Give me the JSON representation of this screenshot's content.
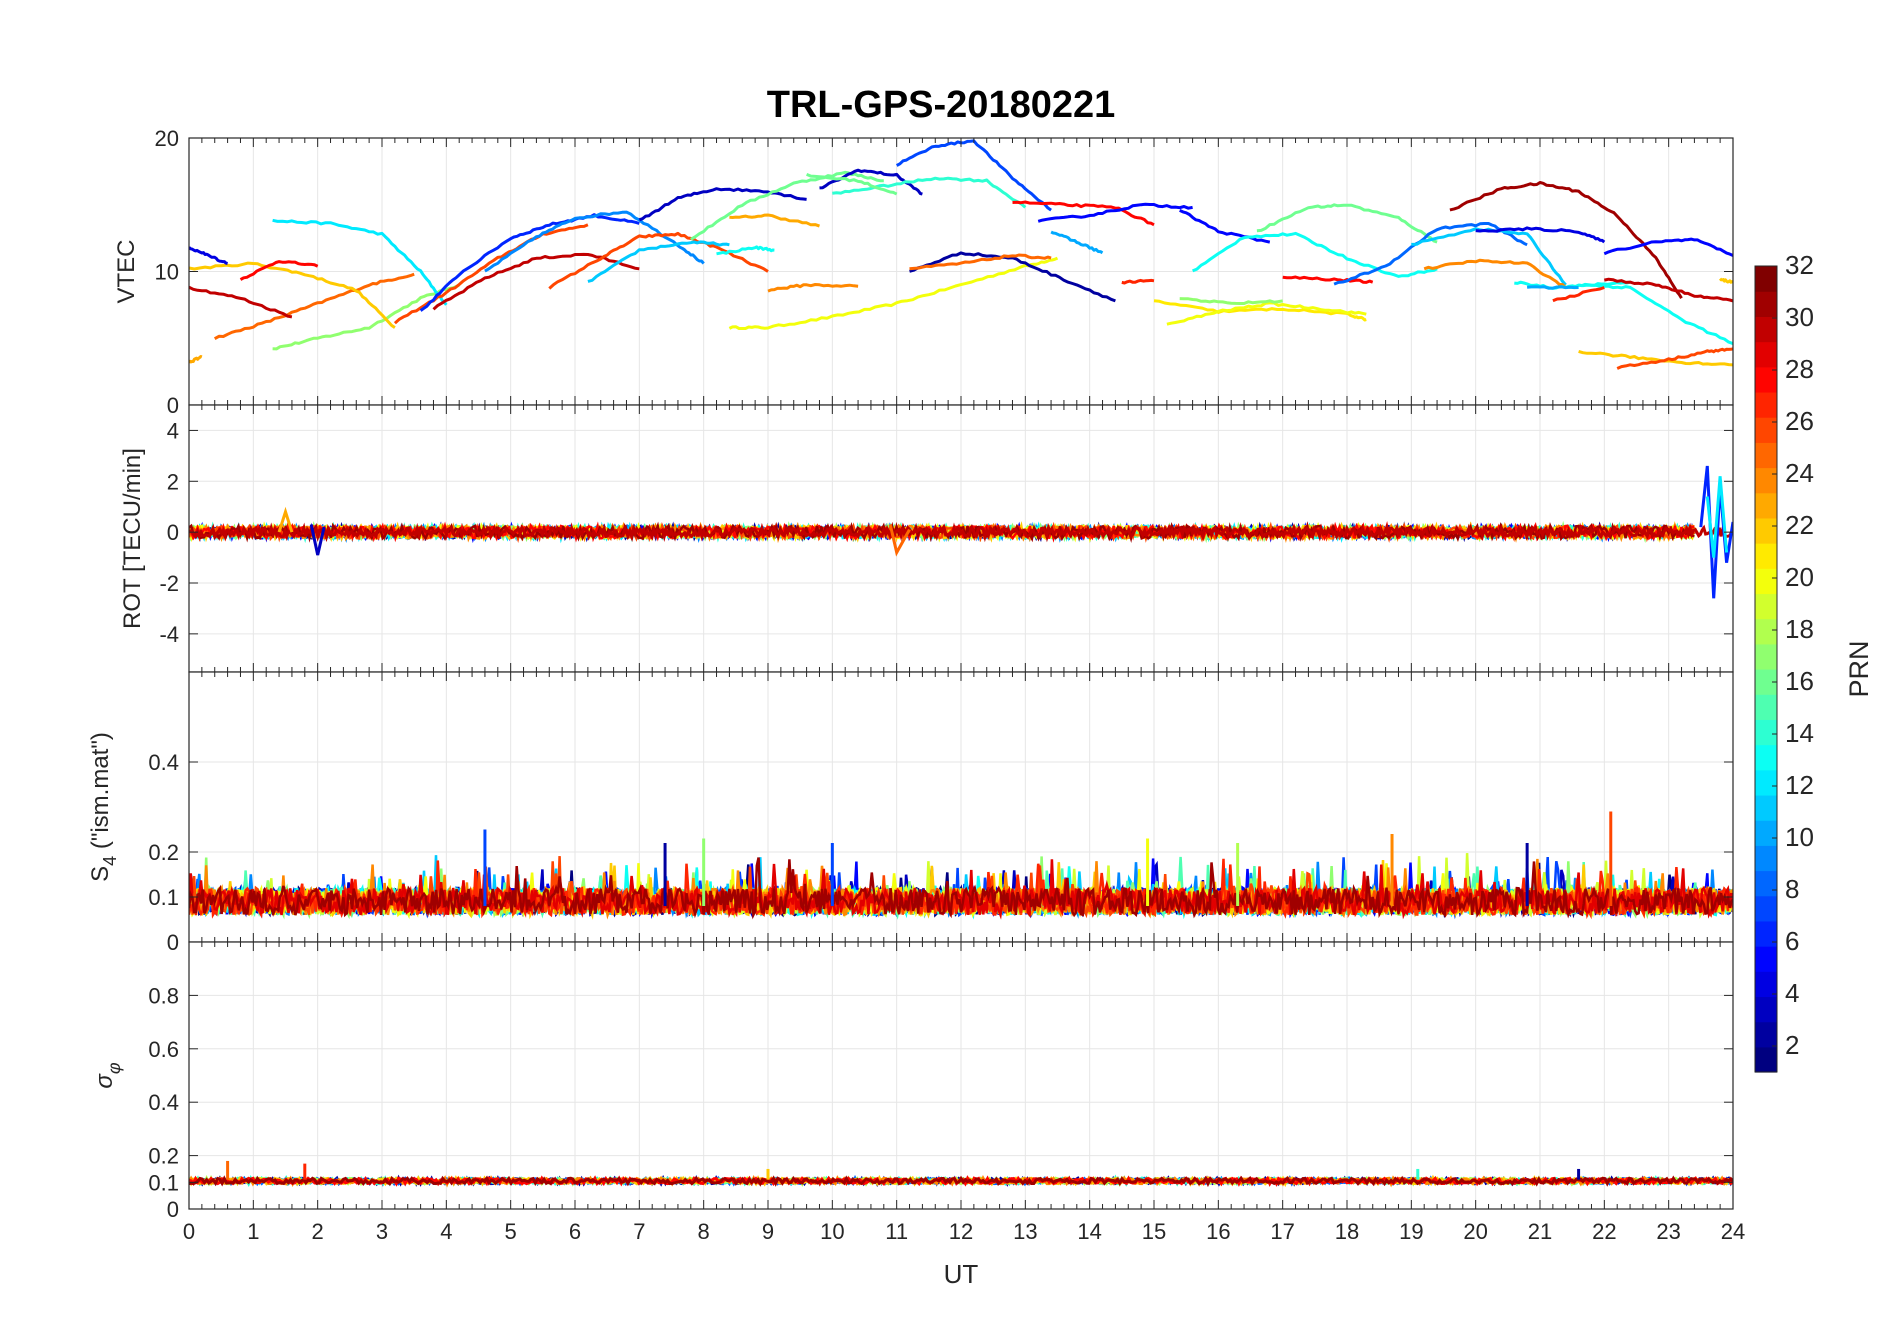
{
  "figure": {
    "title": "TRL-GPS-20180221",
    "xlabel": "UT",
    "colorbar_label": "PRN"
  },
  "colors": {
    "grid": "#e6e6e6",
    "axis": "#262626",
    "colormap": "jet"
  },
  "chart_data": [
    {
      "type": "line",
      "panel": "VTEC",
      "ylabel": "VTEC",
      "xlim": [
        0,
        24
      ],
      "ylim": [
        0,
        20
      ],
      "yticks": [
        0,
        10,
        20
      ],
      "grid": true,
      "series": [
        {
          "prn": 20,
          "x": [
            8.4,
            9.0,
            10.0,
            11.0,
            12.0,
            13.0,
            13.5
          ],
          "y": [
            5.8,
            5.8,
            6.6,
            7.6,
            9.0,
            10.4,
            11.0
          ]
        },
        {
          "prn": 17,
          "x": [
            1.3,
            2.0,
            2.8,
            3.6,
            4.2
          ],
          "y": [
            4.2,
            5.0,
            5.8,
            8.0,
            9.0
          ]
        },
        {
          "prn": 25,
          "x": [
            0.4,
            1.2,
            2.0,
            2.8,
            3.5
          ],
          "y": [
            5.0,
            6.2,
            7.6,
            9.0,
            9.8
          ]
        },
        {
          "prn": 12,
          "x": [
            1.3,
            2.2,
            3.0,
            3.6,
            4.0
          ],
          "y": [
            13.8,
            13.6,
            12.8,
            10.0,
            7.5
          ]
        },
        {
          "prn": 22,
          "x": [
            0.0,
            1.0,
            1.8,
            2.6,
            3.2
          ],
          "y": [
            10.2,
            10.6,
            9.8,
            8.6,
            5.8
          ]
        },
        {
          "prn": 30,
          "x": [
            0.0,
            0.8,
            1.6
          ],
          "y": [
            8.8,
            8.0,
            6.6
          ]
        },
        {
          "prn": 28,
          "x": [
            0.8,
            1.4,
            2.0
          ],
          "y": [
            9.4,
            10.8,
            10.4
          ]
        },
        {
          "prn": 26,
          "x": [
            3.2,
            4.0,
            4.8,
            5.5,
            6.2
          ],
          "y": [
            6.2,
            8.4,
            11.0,
            12.8,
            13.5
          ]
        },
        {
          "prn": 6,
          "x": [
            3.6,
            4.2,
            5.0,
            5.6,
            6.3,
            7.0
          ],
          "y": [
            7.0,
            9.8,
            12.5,
            13.5,
            14.2,
            13.6
          ]
        },
        {
          "prn": 9,
          "x": [
            4.6,
            5.4,
            6.0,
            6.8,
            7.6,
            8.0
          ],
          "y": [
            10.0,
            12.6,
            14.0,
            14.5,
            12.0,
            10.6
          ]
        },
        {
          "prn": 30,
          "x": [
            3.8,
            4.6,
            5.4,
            6.2,
            7.0
          ],
          "y": [
            7.2,
            9.5,
            11.0,
            11.3,
            10.2
          ]
        },
        {
          "prn": 26,
          "x": [
            5.6,
            6.4,
            7.0,
            7.6,
            8.2,
            9.0
          ],
          "y": [
            8.8,
            11.0,
            12.6,
            12.8,
            11.8,
            10.0
          ]
        },
        {
          "prn": 11,
          "x": [
            6.2,
            7.0,
            7.8,
            8.4
          ],
          "y": [
            9.2,
            11.6,
            12.2,
            12.0
          ]
        },
        {
          "prn": 3,
          "x": [
            7.0,
            7.6,
            8.2,
            9.0,
            9.6
          ],
          "y": [
            13.8,
            15.5,
            16.2,
            16.0,
            15.4
          ]
        },
        {
          "prn": 16,
          "x": [
            7.8,
            8.6,
            9.4,
            10.2,
            10.8
          ],
          "y": [
            12.4,
            15.0,
            16.6,
            17.4,
            16.8
          ]
        },
        {
          "prn": 13,
          "x": [
            8.2,
            8.8,
            9.1
          ],
          "y": [
            11.3,
            11.8,
            11.6
          ]
        },
        {
          "prn": 23,
          "x": [
            8.4,
            9.0,
            9.8
          ],
          "y": [
            14.0,
            14.2,
            13.4
          ]
        },
        {
          "prn": 3,
          "x": [
            9.8,
            10.4,
            11.0,
            11.4
          ],
          "y": [
            16.2,
            17.6,
            17.2,
            15.8
          ]
        },
        {
          "prn": 14,
          "x": [
            10.0,
            10.8,
            11.6,
            12.4,
            13.0
          ],
          "y": [
            15.8,
            16.4,
            17.0,
            16.8,
            14.8
          ]
        },
        {
          "prn": 16,
          "x": [
            9.6,
            10.4,
            11.0
          ],
          "y": [
            17.2,
            16.8,
            15.8
          ]
        },
        {
          "prn": 7,
          "x": [
            11.0,
            11.6,
            12.2,
            12.8,
            13.4
          ],
          "y": [
            18.0,
            19.4,
            19.8,
            17.0,
            14.6
          ]
        },
        {
          "prn": 24,
          "x": [
            9.0,
            9.6,
            10.4
          ],
          "y": [
            8.6,
            9.0,
            8.9
          ]
        },
        {
          "prn": 2,
          "x": [
            11.2,
            12.0,
            12.8,
            13.6,
            14.4
          ],
          "y": [
            10.0,
            11.4,
            11.0,
            9.4,
            7.8
          ]
        },
        {
          "prn": 25,
          "x": [
            11.2,
            12.0,
            12.8,
            13.4
          ],
          "y": [
            10.2,
            10.6,
            11.2,
            11.0
          ]
        },
        {
          "prn": 28,
          "x": [
            12.8,
            13.6,
            14.4,
            15.0
          ],
          "y": [
            15.2,
            15.0,
            14.8,
            13.5
          ]
        },
        {
          "prn": 5,
          "x": [
            13.2,
            14.0,
            14.8,
            15.6
          ],
          "y": [
            13.8,
            14.2,
            15.0,
            14.8
          ]
        },
        {
          "prn": 10,
          "x": [
            13.4,
            13.8,
            14.2
          ],
          "y": [
            13.0,
            12.2,
            11.4
          ]
        },
        {
          "prn": 5,
          "x": [
            15.4,
            16.0,
            16.8
          ],
          "y": [
            14.6,
            13.0,
            12.2
          ]
        },
        {
          "prn": 27,
          "x": [
            14.5,
            15.0
          ],
          "y": [
            9.2,
            9.3
          ]
        },
        {
          "prn": 21,
          "x": [
            15.0,
            16.0,
            17.0,
            18.0,
            18.3
          ],
          "y": [
            7.8,
            7.0,
            7.2,
            6.8,
            6.4
          ]
        },
        {
          "prn": 20,
          "x": [
            15.2,
            16.0,
            16.8,
            17.6,
            18.3
          ],
          "y": [
            6.0,
            7.0,
            7.6,
            7.2,
            6.8
          ]
        },
        {
          "prn": 17,
          "x": [
            15.4,
            16.2,
            17.0
          ],
          "y": [
            8.0,
            7.6,
            7.8
          ]
        },
        {
          "prn": 13,
          "x": [
            15.6,
            16.4,
            17.2,
            18.0,
            18.8,
            19.4
          ],
          "y": [
            10.0,
            12.6,
            12.8,
            11.0,
            9.6,
            10.2
          ]
        },
        {
          "prn": 16,
          "x": [
            16.6,
            17.4,
            18.0,
            18.8,
            19.4
          ],
          "y": [
            13.0,
            14.8,
            15.0,
            14.0,
            12.2
          ]
        },
        {
          "prn": 28,
          "x": [
            17.0,
            17.8,
            18.4
          ],
          "y": [
            9.6,
            9.4,
            9.2
          ]
        },
        {
          "prn": 8,
          "x": [
            17.8,
            18.6,
            19.4,
            20.2,
            20.8
          ],
          "y": [
            9.0,
            10.4,
            13.2,
            13.6,
            12.0
          ]
        },
        {
          "prn": 11,
          "x": [
            19.0,
            20.0,
            20.8,
            21.4
          ],
          "y": [
            12.0,
            13.2,
            12.8,
            9.0
          ]
        },
        {
          "prn": 24,
          "x": [
            19.2,
            20.0,
            20.8,
            21.4
          ],
          "y": [
            10.2,
            10.8,
            10.6,
            8.8
          ]
        },
        {
          "prn": 31,
          "x": [
            19.6,
            20.4,
            21.0,
            21.6,
            22.2,
            22.8,
            23.2
          ],
          "y": [
            14.6,
            16.2,
            16.6,
            16.0,
            14.2,
            11.0,
            8.0
          ]
        },
        {
          "prn": 4,
          "x": [
            20.0,
            20.8,
            21.6,
            22.0
          ],
          "y": [
            13.0,
            13.2,
            13.0,
            12.2
          ]
        },
        {
          "prn": 13,
          "x": [
            20.6,
            21.2,
            21.8,
            22.4
          ],
          "y": [
            9.2,
            8.8,
            9.0,
            9.2
          ]
        },
        {
          "prn": 13,
          "x": [
            21.6,
            22.4,
            23.2,
            24.0
          ],
          "y": [
            9.0,
            8.8,
            6.4,
            4.6
          ]
        },
        {
          "prn": 10,
          "x": [
            20.8,
            21.6
          ],
          "y": [
            8.8,
            8.8
          ]
        },
        {
          "prn": 27,
          "x": [
            21.2,
            22.0
          ],
          "y": [
            7.8,
            8.8
          ]
        },
        {
          "prn": 30,
          "x": [
            22.0,
            22.8,
            23.4,
            24.0
          ],
          "y": [
            9.4,
            9.0,
            8.2,
            7.8
          ]
        },
        {
          "prn": 5,
          "x": [
            22.0,
            22.8,
            23.4,
            24.0
          ],
          "y": [
            11.4,
            12.2,
            12.4,
            11.2
          ]
        },
        {
          "prn": 22,
          "x": [
            21.6,
            22.4,
            23.2,
            24.0
          ],
          "y": [
            4.0,
            3.6,
            3.2,
            3.0
          ]
        },
        {
          "prn": 26,
          "x": [
            22.2,
            23.0,
            23.6,
            24.0
          ],
          "y": [
            2.8,
            3.4,
            4.0,
            4.2
          ]
        },
        {
          "prn": 22,
          "x": [
            23.8,
            24.0
          ],
          "y": [
            9.4,
            9.2
          ]
        },
        {
          "prn": 23,
          "x": [
            0.0,
            0.2
          ],
          "y": [
            3.2,
            3.6
          ]
        },
        {
          "prn": 4,
          "x": [
            0.0,
            0.3,
            0.6
          ],
          "y": [
            11.8,
            11.2,
            10.6
          ]
        }
      ]
    },
    {
      "type": "line",
      "panel": "ROT",
      "ylabel": "ROT [TECU/min]",
      "xlim": [
        0,
        24
      ],
      "ylim": [
        -5.5,
        5
      ],
      "yticks": [
        -4,
        -2,
        0,
        2,
        4
      ],
      "grid": true,
      "series": [
        {
          "prn": 30,
          "x": [
            0,
            3,
            6,
            9,
            12,
            15,
            18,
            21,
            23.4
          ],
          "y": [
            0.0,
            0.1,
            -0.1,
            0.1,
            -0.1,
            0.0,
            0.1,
            0.0,
            0.0
          ]
        },
        {
          "prn": 6,
          "x": [
            23.5,
            23.6,
            23.7,
            23.8,
            23.9,
            24.0
          ],
          "y": [
            0.2,
            2.6,
            -2.6,
            1.8,
            -1.2,
            0.4
          ]
        },
        {
          "prn": 12,
          "x": [
            23.6,
            23.7,
            23.8,
            23.9
          ],
          "y": [
            1.4,
            -1.0,
            2.2,
            -0.8
          ]
        },
        {
          "prn": 3,
          "x": [
            1.9,
            2.0,
            2.1
          ],
          "y": [
            0.3,
            -0.9,
            0.2
          ]
        },
        {
          "prn": 25,
          "x": [
            10.9,
            11.0,
            11.2
          ],
          "y": [
            0.3,
            -0.8,
            0.1
          ]
        },
        {
          "prn": 23,
          "x": [
            1.4,
            1.5,
            1.6
          ],
          "y": [
            0.0,
            0.8,
            0.0
          ]
        }
      ]
    },
    {
      "type": "line",
      "panel": "S4",
      "ylabel": "S4 (\"ism.mat\")",
      "xlim": [
        0,
        24
      ],
      "ylim": [
        0,
        0.6
      ],
      "yticks": [
        0,
        0.1,
        0.2,
        0.4
      ],
      "grid": true,
      "summary": "Baseline mostly between 0.05 and 0.15 for all PRNs",
      "peaks": [
        {
          "x": 4.6,
          "y": 0.25,
          "prn": 7
        },
        {
          "x": 7.4,
          "y": 0.22,
          "prn": 2
        },
        {
          "x": 8.0,
          "y": 0.23,
          "prn": 17
        },
        {
          "x": 10.0,
          "y": 0.22,
          "prn": 7
        },
        {
          "x": 14.9,
          "y": 0.23,
          "prn": 20
        },
        {
          "x": 16.3,
          "y": 0.22,
          "prn": 18
        },
        {
          "x": 18.7,
          "y": 0.24,
          "prn": 24
        },
        {
          "x": 20.8,
          "y": 0.22,
          "prn": 2
        },
        {
          "x": 22.1,
          "y": 0.29,
          "prn": 26
        }
      ]
    },
    {
      "type": "line",
      "panel": "sigma_phi",
      "ylabel": "σφ",
      "xlim": [
        0,
        24
      ],
      "ylim": [
        0,
        1
      ],
      "yticks": [
        0,
        0.1,
        0.2,
        0.4,
        0.6,
        0.8
      ],
      "grid": true,
      "summary": "Nearly flat near 0.1 for all PRNs",
      "peaks": [
        {
          "x": 0.6,
          "y": 0.18,
          "prn": 25
        },
        {
          "x": 1.8,
          "y": 0.17,
          "prn": 27
        },
        {
          "x": 9.0,
          "y": 0.15,
          "prn": 22
        },
        {
          "x": 19.1,
          "y": 0.15,
          "prn": 14
        },
        {
          "x": 21.6,
          "y": 0.15,
          "prn": 2
        }
      ]
    }
  ],
  "colorbar": {
    "min": 1,
    "max": 32,
    "ticks": [
      2,
      4,
      6,
      8,
      10,
      12,
      14,
      16,
      18,
      20,
      22,
      24,
      26,
      28,
      30,
      32
    ]
  },
  "xaxis": {
    "ticks": [
      0,
      1,
      2,
      3,
      4,
      5,
      6,
      7,
      8,
      9,
      10,
      11,
      12,
      13,
      14,
      15,
      16,
      17,
      18,
      19,
      20,
      21,
      22,
      23,
      24
    ]
  }
}
